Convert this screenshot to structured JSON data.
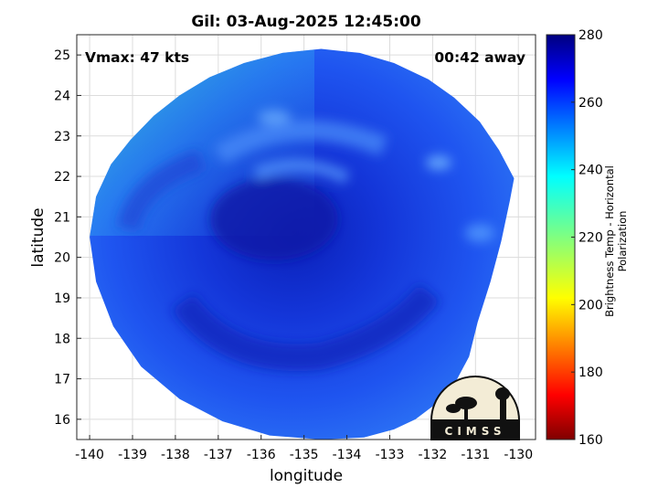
{
  "chart_data": {
    "type": "heatmap",
    "title": "Gil: 03-Aug-2025 12:45:00",
    "xlabel": "longitude",
    "ylabel": "latitude",
    "xlim": [
      -140.3,
      -129.6
    ],
    "ylim": [
      15.5,
      25.5
    ],
    "xticks": [
      -140,
      -139,
      -138,
      -137,
      -136,
      -135,
      -134,
      -133,
      -132,
      -131,
      -130
    ],
    "yticks": [
      16,
      17,
      18,
      19,
      20,
      21,
      22,
      23,
      24,
      25
    ],
    "grid": true,
    "annotations": {
      "vmax": "Vmax: 47 kts",
      "time_offset": "00:42 away"
    },
    "storm_center": {
      "lon": -134.8,
      "lat": 21.0
    },
    "colorbar": {
      "label": "Brightness Temp - Horizontal Polarization",
      "range": [
        160,
        280
      ],
      "ticks": [
        160,
        180,
        200,
        220,
        240,
        260,
        280
      ],
      "colormap": "jet"
    },
    "logo_text": "CIMSS"
  }
}
